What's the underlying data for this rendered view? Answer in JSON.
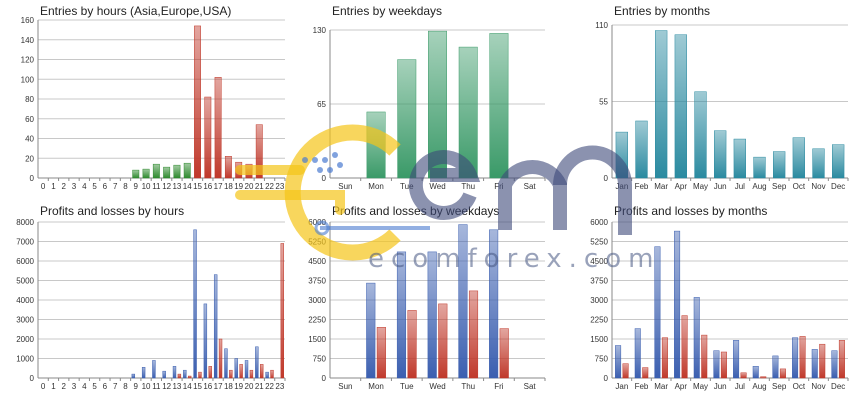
{
  "chart_data": [
    {
      "id": "hours-entries",
      "type": "bar",
      "title": "Entries by hours (Asia,Europe,USA)",
      "categories": [
        "0",
        "1",
        "2",
        "3",
        "4",
        "5",
        "6",
        "7",
        "8",
        "9",
        "10",
        "11",
        "12",
        "13",
        "14",
        "15",
        "16",
        "17",
        "18",
        "19",
        "20",
        "21",
        "22",
        "23"
      ],
      "values": [
        0,
        0,
        0,
        0,
        0,
        0,
        0,
        0,
        0,
        8,
        9,
        14,
        11,
        13,
        15,
        154,
        82,
        102,
        22,
        16,
        14,
        54,
        0,
        0
      ],
      "colors": [
        "#2f8a2f",
        "#2f8a2f",
        "#2f8a2f",
        "#2f8a2f",
        "#2f8a2f",
        "#2f8a2f",
        "#2f8a2f",
        "#2f8a2f",
        "#2f8a2f",
        "#2f8a2f",
        "#2f8a2f",
        "#2f8a2f",
        "#2f8a2f",
        "#2f8a2f",
        "#2f8a2f",
        "#c0392b",
        "#c0392b",
        "#c0392b",
        "#c0392b",
        "#c0392b",
        "#c0392b",
        "#c0392b",
        "#c0392b",
        "#c0392b"
      ],
      "yticks": [
        "0",
        "20",
        "40",
        "60",
        "80",
        "100",
        "120",
        "140",
        "160"
      ],
      "ylim": [
        0,
        160
      ],
      "grid": true
    },
    {
      "id": "weekday-entries",
      "type": "bar",
      "title": "Entries by weekdays",
      "categories": [
        "Sun",
        "Mon",
        "Tue",
        "Wed",
        "Thu",
        "Fri",
        "Sat"
      ],
      "values": [
        0,
        58,
        104,
        129,
        115,
        127,
        0
      ],
      "color": "#3a9a68",
      "yticks": [
        "0",
        "65",
        "130"
      ],
      "ylim": [
        0,
        130
      ],
      "grid": true
    },
    {
      "id": "month-entries",
      "type": "bar",
      "title": "Entries by months",
      "categories": [
        "Jan",
        "Feb",
        "Mar",
        "Apr",
        "May",
        "Jun",
        "Jul",
        "Aug",
        "Sep",
        "Oct",
        "Nov",
        "Dec"
      ],
      "values": [
        33,
        41,
        106,
        103,
        62,
        34,
        28,
        15,
        19,
        29,
        21,
        24
      ],
      "color": "#2a8aa0",
      "yticks": [
        "0",
        "55",
        "110"
      ],
      "ylim": [
        0,
        110
      ],
      "grid": true
    },
    {
      "id": "hours-pnl",
      "type": "bar",
      "title": "Profits and losses by hours",
      "categories": [
        "0",
        "1",
        "2",
        "3",
        "4",
        "5",
        "6",
        "7",
        "8",
        "9",
        "10",
        "11",
        "12",
        "13",
        "14",
        "15",
        "16",
        "17",
        "18",
        "19",
        "20",
        "21",
        "22",
        "23"
      ],
      "series": [
        {
          "values": [
            0,
            0,
            0,
            0,
            0,
            0,
            0,
            0,
            0,
            200,
            550,
            900,
            350,
            600,
            400,
            7600,
            3800,
            5300,
            1500,
            1000,
            900,
            1600,
            300,
            0
          ],
          "color": "#3b5fb0"
        },
        {
          "values": [
            0,
            0,
            0,
            0,
            0,
            0,
            0,
            0,
            0,
            0,
            0,
            0,
            0,
            200,
            100,
            300,
            600,
            2000,
            400,
            700,
            400,
            700,
            400,
            6900
          ],
          "color": "#c0392b"
        }
      ],
      "yticks": [
        "0",
        "1000",
        "2000",
        "3000",
        "4000",
        "5000",
        "6000",
        "7000",
        "8000"
      ],
      "ylim": [
        0,
        8000
      ],
      "grid": true
    },
    {
      "id": "weekday-pnl",
      "type": "bar",
      "title": "Profits and losses by weekdays",
      "categories": [
        "Sun",
        "Mon",
        "Tue",
        "Wed",
        "Thu",
        "Fri",
        "Sat"
      ],
      "series": [
        {
          "values": [
            0,
            3650,
            4850,
            4850,
            5900,
            5700,
            0
          ],
          "color": "#3b5fb0"
        },
        {
          "values": [
            0,
            1950,
            2600,
            2850,
            3350,
            1900,
            0
          ],
          "color": "#c0392b"
        }
      ],
      "yticks": [
        "0",
        "750",
        "1500",
        "2250",
        "3000",
        "3750",
        "4500",
        "5250",
        "6000"
      ],
      "ylim": [
        0,
        6000
      ],
      "grid": true
    },
    {
      "id": "month-pnl",
      "type": "bar",
      "title": "Profits and losses by months",
      "categories": [
        "Jan",
        "Feb",
        "Mar",
        "Apr",
        "May",
        "Jun",
        "Jul",
        "Aug",
        "Sep",
        "Oct",
        "Nov",
        "Dec"
      ],
      "series": [
        {
          "values": [
            1250,
            1900,
            5050,
            5650,
            3100,
            1050,
            1450,
            450,
            850,
            1550,
            1100,
            1050
          ],
          "color": "#3b5fb0"
        },
        {
          "values": [
            550,
            400,
            1550,
            2400,
            1650,
            1000,
            200,
            50,
            350,
            1600,
            1300,
            1450
          ],
          "color": "#c0392b"
        }
      ],
      "yticks": [
        "0",
        "750",
        "1500",
        "2250",
        "3000",
        "3750",
        "4500",
        "5250",
        "6000"
      ],
      "ylim": [
        0,
        6000
      ],
      "grid": true
    }
  ],
  "watermark": {
    "text": "ecomforex.com",
    "colors": {
      "yellow": "#f5c518",
      "navy": "#3e4a7a",
      "blue": "#4a7bd0"
    }
  }
}
